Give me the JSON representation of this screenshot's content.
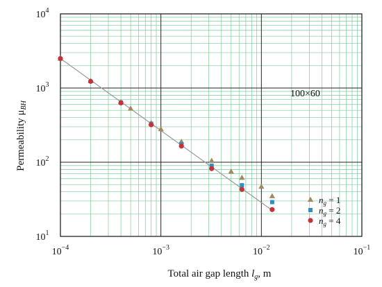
{
  "chart_data": {
    "type": "scatter",
    "x_scale": "log",
    "y_scale": "log",
    "xlim": [
      0.0001,
      0.1
    ],
    "ylim": [
      10,
      10000
    ],
    "grid": true,
    "legend_position": "bottom-right",
    "xlabel": {
      "prefix": "Total air gap length ",
      "var": "l",
      "sub": "g",
      "suffix": ", m"
    },
    "ylabel": {
      "prefix": "Permeability  ",
      "var": "μ",
      "sub": "BH"
    },
    "x_ticks": [
      {
        "value": 0.0001,
        "base": "10",
        "exp": "−4"
      },
      {
        "value": 0.001,
        "base": "10",
        "exp": "−3"
      },
      {
        "value": 0.01,
        "base": "10",
        "exp": "−2"
      },
      {
        "value": 0.1,
        "base": "10",
        "exp": "−1"
      }
    ],
    "y_ticks": [
      {
        "value": 10,
        "base": "10",
        "exp": "1"
      },
      {
        "value": 100,
        "base": "10",
        "exp": "2"
      },
      {
        "value": 1000,
        "base": "10",
        "exp": "3"
      },
      {
        "value": 10000,
        "base": "10",
        "exp": "4"
      }
    ],
    "annotation": "100×60",
    "fit_line": {
      "x": [
        0.0001,
        0.0125
      ],
      "y": [
        2500,
        23
      ]
    },
    "series": [
      {
        "name_var": "n",
        "name_sub": "g",
        "name_rest": " = 1",
        "marker": "triangle",
        "color": "#a08a60",
        "x": [
          0.0001,
          0.0002,
          0.0004,
          0.0005,
          0.0008,
          0.001,
          0.0016,
          0.0032,
          0.005,
          0.0064,
          0.01,
          0.0128
        ],
        "y": [
          2500,
          1250,
          650,
          530,
          340,
          280,
          190,
          105,
          75,
          62,
          47,
          35
        ]
      },
      {
        "name_var": "n",
        "name_sub": "g",
        "name_rest": " = 2",
        "marker": "square",
        "color": "#2e8fc4",
        "x": [
          0.0004,
          0.0008,
          0.0016,
          0.0032,
          0.0064,
          0.0128
        ],
        "y": [
          640,
          330,
          175,
          90,
          49,
          29
        ]
      },
      {
        "name_var": "n",
        "name_sub": "g",
        "name_rest": " = 4",
        "marker": "circle",
        "color": "#c4323a",
        "x": [
          0.0001,
          0.0002,
          0.0004,
          0.0008,
          0.0016,
          0.0032,
          0.0064,
          0.0128
        ],
        "y": [
          2500,
          1230,
          630,
          320,
          165,
          82,
          43,
          23
        ]
      }
    ]
  }
}
